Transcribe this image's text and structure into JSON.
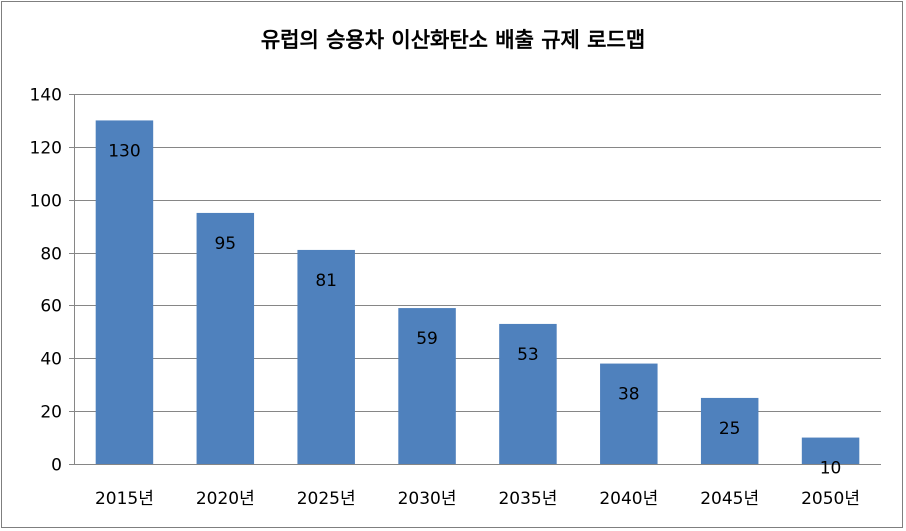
{
  "chart_data": {
    "type": "bar",
    "title": "유럽의 승용차 이산화탄소 배출 규제 로드맵",
    "xlabel": "",
    "ylabel": "",
    "categories": [
      "2015년",
      "2020년",
      "2025년",
      "2030년",
      "2035년",
      "2040년",
      "2045년",
      "2050년"
    ],
    "values": [
      130,
      95,
      81,
      59,
      53,
      38,
      25,
      10
    ],
    "data_labels": [
      "130",
      "95",
      "81",
      "59",
      "53",
      "38",
      "25",
      "10"
    ],
    "ylim": [
      0,
      140
    ],
    "yticks": [
      0,
      20,
      40,
      60,
      80,
      100,
      120,
      140
    ],
    "ytick_labels": [
      "0",
      "20",
      "40",
      "60",
      "80",
      "100",
      "120",
      "140"
    ],
    "grid": true,
    "legend": "none",
    "bar_color": "#4f81bd",
    "grid_color": "#868686"
  }
}
